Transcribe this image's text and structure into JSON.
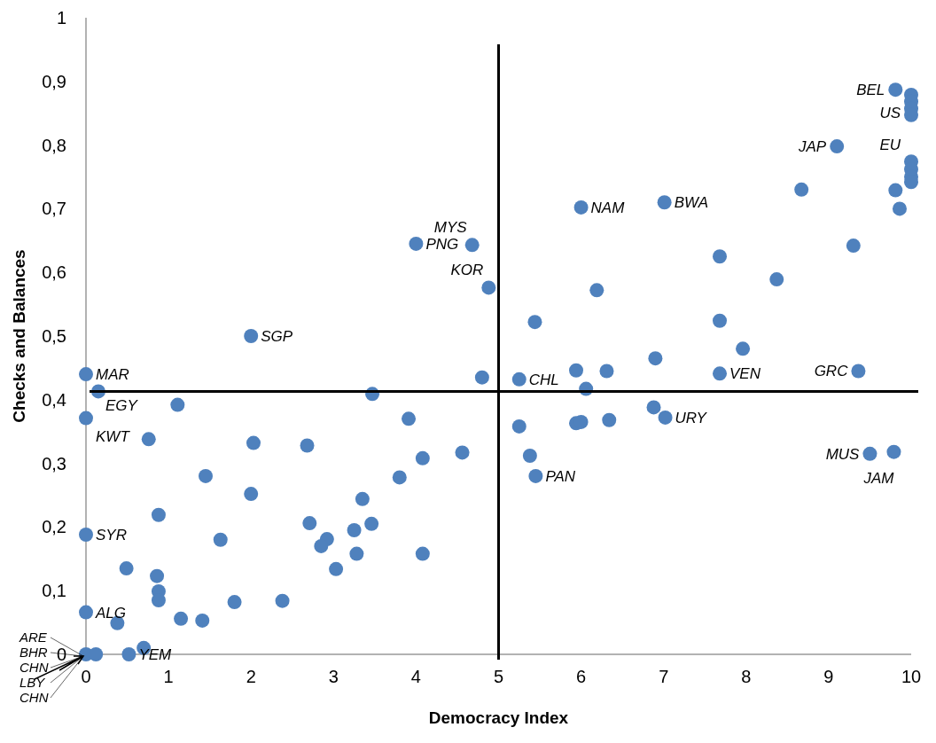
{
  "chart_data": {
    "type": "scatter",
    "xlabel": "Democracy Index",
    "ylabel": "Checks and Balances",
    "xlim": [
      0,
      10
    ],
    "ylim": [
      0,
      1
    ],
    "xticks": [
      0,
      1,
      2,
      3,
      4,
      5,
      6,
      7,
      8,
      9,
      10
    ],
    "yticks": [
      0,
      {
        "value": 0.1,
        "label": "0,1"
      },
      {
        "value": 0.2,
        "label": "0,2"
      },
      {
        "value": 0.3,
        "label": "0,3"
      },
      {
        "value": 0.4,
        "label": "0,4"
      },
      {
        "value": 0.5,
        "label": "0,5"
      },
      {
        "value": 0.6,
        "label": "0,6"
      },
      {
        "value": 0.7,
        "label": "0,7"
      },
      {
        "value": 0.8,
        "label": "0,8"
      },
      {
        "value": 0.9,
        "label": "0,9"
      },
      1
    ],
    "grid": false,
    "marker": "circle",
    "series": [
      {
        "color": "#4f81bd",
        "x": [
          0,
          0.15,
          0,
          1.11,
          0.76,
          2.03,
          2.68,
          3.47,
          3.91,
          4.08,
          1.45,
          2.0,
          3.8,
          3.35,
          0.88,
          2.71,
          3.46,
          3.25,
          1.63,
          2.92,
          2.85,
          0,
          0.49,
          0.86,
          3.28,
          3.03,
          4.08,
          0.88,
          0.88,
          1.8,
          2.38,
          0,
          0.38,
          1.15,
          1.41,
          0,
          0.12,
          0.52,
          0.7,
          2.0,
          4.0,
          4.68,
          4.88,
          4.8,
          4.56,
          5.25,
          5.94,
          6.31,
          6.06,
          5.44,
          6.19,
          7.68,
          8.37,
          9.3,
          7.68,
          7.96,
          6.9,
          7.68,
          9.36,
          5.25,
          5.94,
          6.0,
          6.34,
          6.88,
          7.02,
          5.38,
          5.45,
          9.5,
          9.79,
          6.0,
          7.01,
          8.67,
          9.81,
          10,
          10,
          10,
          10,
          9.1,
          10,
          10,
          10,
          10,
          9.81,
          9.86
        ],
        "values": [
          0.44,
          0.413,
          0.371,
          0.392,
          0.338,
          0.332,
          0.328,
          0.409,
          0.37,
          0.308,
          0.28,
          0.252,
          0.278,
          0.244,
          0.219,
          0.206,
          0.205,
          0.195,
          0.18,
          0.181,
          0.17,
          0.188,
          0.135,
          0.123,
          0.158,
          0.134,
          0.158,
          0.099,
          0.085,
          0.082,
          0.084,
          0.066,
          0.049,
          0.056,
          0.053,
          0,
          0,
          0,
          0.01,
          0.5,
          0.645,
          0.643,
          0.576,
          0.435,
          0.317,
          0.432,
          0.446,
          0.445,
          0.417,
          0.522,
          0.572,
          0.625,
          0.589,
          0.642,
          0.524,
          0.48,
          0.465,
          0.441,
          0.445,
          0.358,
          0.363,
          0.365,
          0.368,
          0.388,
          0.372,
          0.312,
          0.28,
          0.315,
          0.318,
          0.702,
          0.71,
          0.73,
          0.887,
          0.879,
          0.868,
          0.857,
          0.847,
          0.798,
          0.774,
          0.762,
          0.75,
          0.742,
          0.729,
          0.7
        ]
      }
    ],
    "ref_lines": [
      {
        "axis": "x",
        "value": 5,
        "color": "#000000"
      },
      {
        "axis": "y",
        "value": 0.413,
        "color": "#000000"
      }
    ],
    "annotations": [
      {
        "text": "MAR",
        "x": 0,
        "y": 0.44
      },
      {
        "text": "EGY",
        "x": 0.15,
        "y": 0.413
      },
      {
        "text": "KWT",
        "x": 0,
        "y": 0.371
      },
      {
        "text": "SYR",
        "x": 0,
        "y": 0.188
      },
      {
        "text": "ALG",
        "x": 0,
        "y": 0.066
      },
      {
        "text": "YEM",
        "x": 0.52,
        "y": 0
      },
      {
        "text": "ARE",
        "x": 0,
        "y": 0
      },
      {
        "text": "BHR",
        "x": 0,
        "y": 0
      },
      {
        "text": "CHN",
        "x": 0,
        "y": 0
      },
      {
        "text": "LBY",
        "x": 0,
        "y": 0
      },
      {
        "text": "CHN",
        "x": 0,
        "y": 0
      },
      {
        "text": "SGP",
        "x": 2.0,
        "y": 0.5
      },
      {
        "text": "PNG",
        "x": 4.0,
        "y": 0.645
      },
      {
        "text": "MYS",
        "x": 4.68,
        "y": 0.643
      },
      {
        "text": "KOR",
        "x": 4.88,
        "y": 0.576
      },
      {
        "text": "NAM",
        "x": 6.0,
        "y": 0.702
      },
      {
        "text": "BWA",
        "x": 7.01,
        "y": 0.71
      },
      {
        "text": "CHL",
        "x": 5.25,
        "y": 0.432
      },
      {
        "text": "VEN",
        "x": 7.68,
        "y": 0.441
      },
      {
        "text": "URY",
        "x": 7.02,
        "y": 0.372
      },
      {
        "text": "PAN",
        "x": 5.45,
        "y": 0.28
      },
      {
        "text": "GRC",
        "x": 9.36,
        "y": 0.445
      },
      {
        "text": "MUS",
        "x": 9.5,
        "y": 0.315
      },
      {
        "text": "JAM",
        "x": 9.79,
        "y": 0.318
      },
      {
        "text": "BEL",
        "x": 9.81,
        "y": 0.887
      },
      {
        "text": "US",
        "x": 10,
        "y": 0.879
      },
      {
        "text": "EU",
        "x": 10,
        "y": 0.857
      },
      {
        "text": "JAP",
        "x": 9.1,
        "y": 0.798
      }
    ]
  }
}
